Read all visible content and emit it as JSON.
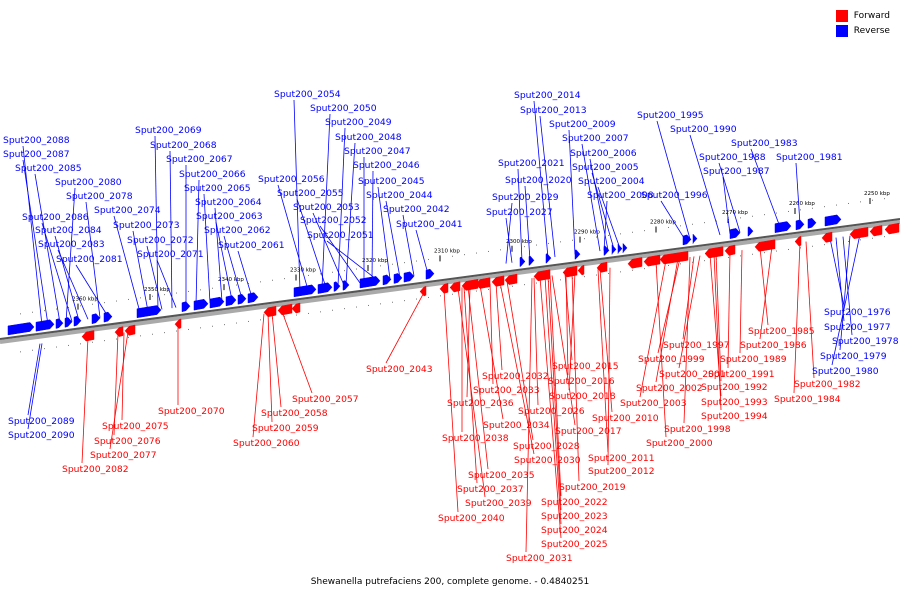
{
  "colors": {
    "forward": "#ff0000",
    "reverse": "#0000ff",
    "backbone": "#555555"
  },
  "legend": {
    "forward_label": "Forward",
    "reverse_label": "Reverse"
  },
  "caption": "Shewanella putrefaciens 200, complete genome. - 0.4840251",
  "scale_ticks": [
    "2250 kbp",
    "2260 kbp",
    "2270 kbp",
    "2280 kbp",
    "2290 kbp",
    "2300 kbp",
    "2310 kbp",
    "2320 kbp",
    "2330 kbp",
    "2340 kbp",
    "2350 kbp",
    "2360 kbp"
  ],
  "reverse_genes_above": [
    "Sput200_2088",
    "Sput200_2087",
    "Sput200_2085",
    "Sput200_2080",
    "Sput200_2078",
    "Sput200_2074",
    "Sput200_2086",
    "Sput200_2084",
    "Sput200_2083",
    "Sput200_2081",
    "Sput200_2069",
    "Sput200_2068",
    "Sput200_2067",
    "Sput200_2066",
    "Sput200_2065",
    "Sput200_2064",
    "Sput200_2063",
    "Sput200_2062",
    "Sput200_2073",
    "Sput200_2072",
    "Sput200_2071",
    "Sput200_2061",
    "Sput200_2054",
    "Sput200_2050",
    "Sput200_2049",
    "Sput200_2048",
    "Sput200_2047",
    "Sput200_2046",
    "Sput200_2056",
    "Sput200_2055",
    "Sput200_2053",
    "Sput200_2052",
    "Sput200_2051",
    "Sput200_2045",
    "Sput200_2044",
    "Sput200_2042",
    "Sput200_2041",
    "Sput200_2014",
    "Sput200_2013",
    "Sput200_2009",
    "Sput200_2007",
    "Sput200_2006",
    "Sput200_2021",
    "Sput200_2005",
    "Sput200_2020",
    "Sput200_2004",
    "Sput200_2029",
    "Sput200_2008",
    "Sput200_2027",
    "Sput200_1995",
    "Sput200_1990",
    "Sput200_1996",
    "Sput200_1983",
    "Sput200_1988",
    "Sput200_1981",
    "Sput200_1987"
  ],
  "reverse_genes_below": [
    "Sput200_2089",
    "Sput200_2090",
    "Sput200_1976",
    "Sput200_1977",
    "Sput200_1978",
    "Sput200_1979",
    "Sput200_1980"
  ],
  "forward_genes_below": [
    "Sput200_2043",
    "Sput200_2070",
    "Sput200_2057",
    "Sput200_2058",
    "Sput200_2075",
    "Sput200_2059",
    "Sput200_2076",
    "Sput200_2060",
    "Sput200_2077",
    "Sput200_2082",
    "Sput200_2032",
    "Sput200_2033",
    "Sput200_2036",
    "Sput200_2034",
    "Sput200_2038",
    "Sput200_2028",
    "Sput200_2030",
    "Sput200_2035",
    "Sput200_2037",
    "Sput200_2039",
    "Sput200_2040",
    "Sput200_2015",
    "Sput200_2016",
    "Sput200_2018",
    "Sput200_2026",
    "Sput200_2017",
    "Sput200_2010",
    "Sput200_2011",
    "Sput200_2012",
    "Sput200_2019",
    "Sput200_2022",
    "Sput200_2023",
    "Sput200_2024",
    "Sput200_2025",
    "Sput200_2031",
    "Sput200_1997",
    "Sput200_2001",
    "Sput200_1999",
    "Sput200_2002",
    "Sput200_2003",
    "Sput200_1998",
    "Sput200_2000",
    "Sput200_1985",
    "Sput200_1986",
    "Sput200_1989",
    "Sput200_1991",
    "Sput200_1992",
    "Sput200_1993",
    "Sput200_1994",
    "Sput200_1982",
    "Sput200_1984"
  ]
}
